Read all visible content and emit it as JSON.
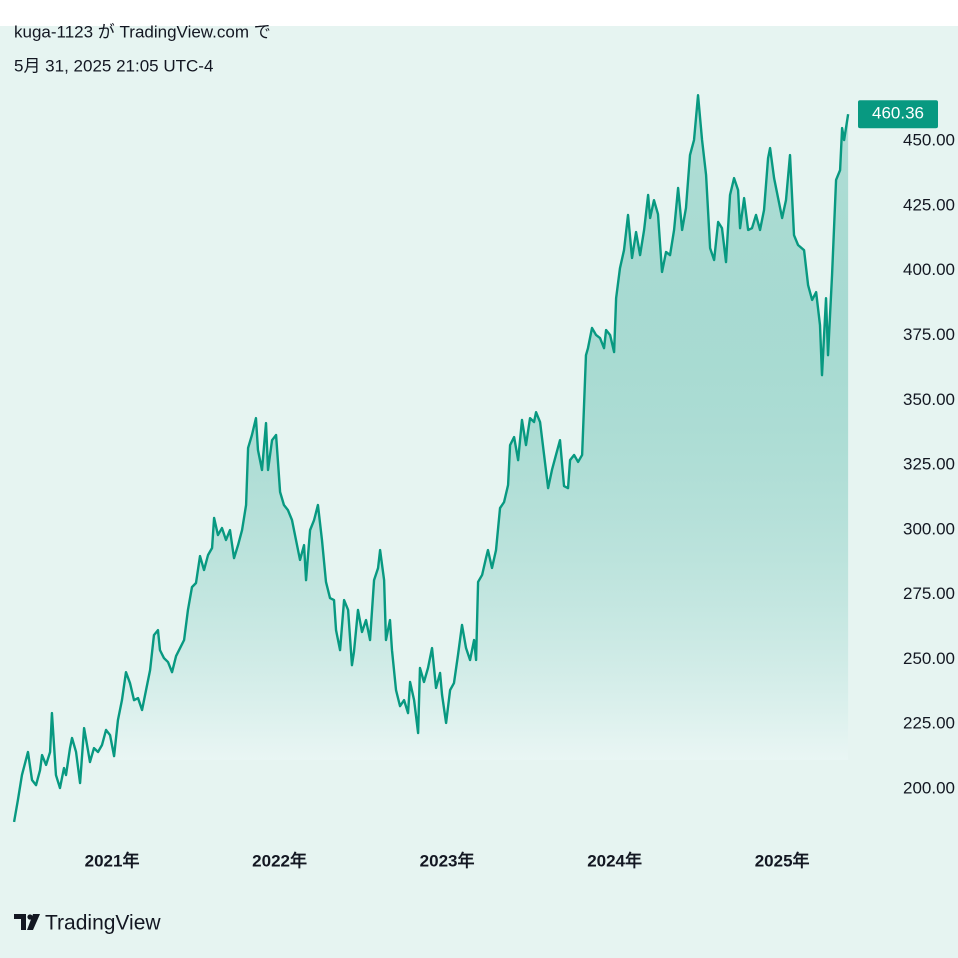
{
  "header": {
    "author": "kuga-1123 が TradingView.com で",
    "timestamp": "5月 31, 2025 21:05 UTC-4"
  },
  "logo": "TradingView",
  "chart_data": {
    "type": "area",
    "color": "#089981",
    "xlim": [
      2020.331,
      2025.435
    ],
    "ylim": [
      184.2,
      494.4
    ],
    "xticks": [
      {
        "value": 2021,
        "label": "2021年"
      },
      {
        "value": 2022,
        "label": "2022年"
      },
      {
        "value": 2023,
        "label": "2023年"
      },
      {
        "value": 2024,
        "label": "2024年"
      },
      {
        "value": 2025,
        "label": "2025年"
      }
    ],
    "yticks": [
      {
        "value": 200,
        "label": "200.00"
      },
      {
        "value": 225,
        "label": "225.00"
      },
      {
        "value": 250,
        "label": "250.00"
      },
      {
        "value": 275,
        "label": "275.00"
      },
      {
        "value": 300,
        "label": "300.00"
      },
      {
        "value": 325,
        "label": "325.00"
      },
      {
        "value": 350,
        "label": "350.00"
      },
      {
        "value": 375,
        "label": "375.00"
      },
      {
        "value": 400,
        "label": "400.00"
      },
      {
        "value": 425,
        "label": "425.00"
      },
      {
        "value": 450,
        "label": "450.00"
      }
    ],
    "x": [
      2020.415,
      2020.438,
      2020.462,
      2020.498,
      2020.522,
      2020.546,
      2020.57,
      2020.582,
      2020.606,
      2020.63,
      2020.641,
      2020.665,
      2020.689,
      2020.713,
      2020.725,
      2020.749,
      2020.761,
      2020.785,
      2020.809,
      2020.833,
      2020.856,
      2020.868,
      2020.892,
      2020.916,
      2020.94,
      2020.964,
      2020.988,
      2021.012,
      2021.035,
      2021.059,
      2021.083,
      2021.107,
      2021.131,
      2021.155,
      2021.179,
      2021.203,
      2021.227,
      2021.25,
      2021.274,
      2021.286,
      2021.31,
      2021.334,
      2021.358,
      2021.382,
      2021.406,
      2021.43,
      2021.453,
      2021.477,
      2021.501,
      2021.525,
      2021.549,
      2021.573,
      2021.597,
      2021.609,
      2021.632,
      2021.656,
      2021.68,
      2021.704,
      2021.728,
      2021.752,
      2021.776,
      2021.8,
      2021.812,
      2021.835,
      2021.859,
      2021.871,
      2021.895,
      2021.919,
      2021.931,
      2021.955,
      2021.979,
      2022.003,
      2022.026,
      2022.05,
      2022.074,
      2022.098,
      2022.122,
      2022.146,
      2022.158,
      2022.182,
      2022.206,
      2022.229,
      2022.253,
      2022.277,
      2022.301,
      2022.325,
      2022.337,
      2022.361,
      2022.385,
      2022.409,
      2022.432,
      2022.444,
      2022.468,
      2022.492,
      2022.516,
      2022.54,
      2022.564,
      2022.588,
      2022.6,
      2022.624,
      2022.635,
      2022.659,
      2022.671,
      2022.695,
      2022.719,
      2022.743,
      2022.767,
      2022.779,
      2022.803,
      2022.827,
      2022.838,
      2022.862,
      2022.886,
      2022.91,
      2022.934,
      2022.958,
      2022.97,
      2022.994,
      2023.018,
      2023.041,
      2023.065,
      2023.089,
      2023.113,
      2023.137,
      2023.161,
      2023.173,
      2023.185,
      2023.209,
      2023.232,
      2023.244,
      2023.268,
      2023.292,
      2023.316,
      2023.34,
      2023.364,
      2023.376,
      2023.4,
      2023.424,
      2023.447,
      2023.471,
      2023.495,
      2023.519,
      2023.531,
      2023.555,
      2023.579,
      2023.603,
      2023.626,
      2023.65,
      2023.674,
      2023.698,
      2023.722,
      2023.734,
      2023.758,
      2023.782,
      2023.806,
      2023.829,
      2023.841,
      2023.865,
      2023.889,
      2023.913,
      2023.937,
      2023.949,
      2023.973,
      2023.997,
      2024.009,
      2024.032,
      2024.056,
      2024.08,
      2024.104,
      2024.128,
      2024.152,
      2024.176,
      2024.2,
      2024.212,
      2024.235,
      2024.259,
      2024.283,
      2024.307,
      2024.331,
      2024.355,
      2024.379,
      2024.403,
      2024.426,
      2024.45,
      2024.474,
      2024.498,
      2024.522,
      2024.546,
      2024.57,
      2024.594,
      2024.618,
      2024.641,
      2024.665,
      2024.689,
      2024.713,
      2024.737,
      2024.749,
      2024.773,
      2024.797,
      2024.82,
      2024.844,
      2024.868,
      2024.892,
      2024.916,
      2024.928,
      2024.952,
      2024.976,
      2025.0,
      2025.023,
      2025.047,
      2025.071,
      2025.095,
      2025.131,
      2025.155,
      2025.179,
      2025.203,
      2025.226,
      2025.238,
      2025.262,
      2025.274,
      2025.298,
      2025.322,
      2025.346,
      2025.358,
      2025.37,
      2025.394
    ],
    "values": [
      187.3,
      195.8,
      205.4,
      214.3,
      203.5,
      201.5,
      207.3,
      213.1,
      209.3,
      214.3,
      229.3,
      205.4,
      200.4,
      208.1,
      205.4,
      215.8,
      219.7,
      214.3,
      202.3,
      223.5,
      215.0,
      210.4,
      215.8,
      214.3,
      217.0,
      222.8,
      220.8,
      212.7,
      226.6,
      234.3,
      245.1,
      240.9,
      234.3,
      235.1,
      230.5,
      238.2,
      245.9,
      259.4,
      261.3,
      253.6,
      250.5,
      249.0,
      245.1,
      251.3,
      254.4,
      257.5,
      269.1,
      277.9,
      279.5,
      289.9,
      284.5,
      290.3,
      293.0,
      304.6,
      298.0,
      300.7,
      296.1,
      299.9,
      289.1,
      294.1,
      299.9,
      309.6,
      331.6,
      336.6,
      343.1,
      330.8,
      323.1,
      341.2,
      323.1,
      334.6,
      336.6,
      314.6,
      309.6,
      307.6,
      303.8,
      296.1,
      288.4,
      294.1,
      280.6,
      299.9,
      303.8,
      309.6,
      296.1,
      279.9,
      273.7,
      272.9,
      261.3,
      253.6,
      272.9,
      269.1,
      247.8,
      252.9,
      269.1,
      260.6,
      265.2,
      257.5,
      280.6,
      285.3,
      292.2,
      280.6,
      257.5,
      265.2,
      253.6,
      238.2,
      232.0,
      234.3,
      229.3,
      241.3,
      234.3,
      221.6,
      246.7,
      241.3,
      246.7,
      254.4,
      239.0,
      244.8,
      236.3,
      225.5,
      238.2,
      240.9,
      251.7,
      263.3,
      254.4,
      249.8,
      257.5,
      249.8,
      279.9,
      282.6,
      289.1,
      292.2,
      285.3,
      292.2,
      308.4,
      310.7,
      317.3,
      332.7,
      335.8,
      326.9,
      342.4,
      332.7,
      343.1,
      341.6,
      345.4,
      341.6,
      328.9,
      316.1,
      323.1,
      328.9,
      334.6,
      316.9,
      316.1,
      326.9,
      328.9,
      326.2,
      328.9,
      367.4,
      370.1,
      377.9,
      375.2,
      374.0,
      370.1,
      377.1,
      375.2,
      368.6,
      389.4,
      401.0,
      407.9,
      421.5,
      404.9,
      414.9,
      406.0,
      415.7,
      429.2,
      420.3,
      427.2,
      421.8,
      399.5,
      407.2,
      406.0,
      415.7,
      431.9,
      415.7,
      424.2,
      444.6,
      450.4,
      467.7,
      450.4,
      436.9,
      408.7,
      404.1,
      418.8,
      416.4,
      403.3,
      429.2,
      435.7,
      431.1,
      416.4,
      428.0,
      415.7,
      416.4,
      421.5,
      415.7,
      423.4,
      443.4,
      447.3,
      435.7,
      428.0,
      420.3,
      427.2,
      444.6,
      413.7,
      409.9,
      407.9,
      394.4,
      388.7,
      391.7,
      379.0,
      359.7,
      389.4,
      367.4,
      398.3,
      435.0,
      438.8,
      455.0,
      450.4,
      460.36
    ]
  }
}
